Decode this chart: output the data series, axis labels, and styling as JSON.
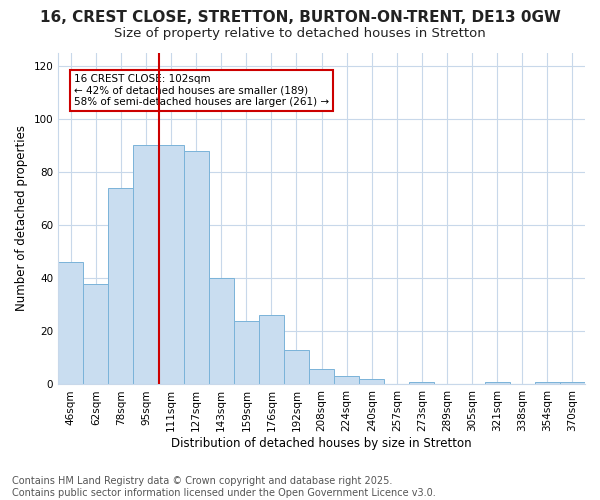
{
  "title": "16, CREST CLOSE, STRETTON, BURTON-ON-TRENT, DE13 0GW",
  "subtitle": "Size of property relative to detached houses in Stretton",
  "xlabel": "Distribution of detached houses by size in Stretton",
  "ylabel": "Number of detached properties",
  "categories": [
    "46sqm",
    "62sqm",
    "78sqm",
    "95sqm",
    "111sqm",
    "127sqm",
    "143sqm",
    "159sqm",
    "176sqm",
    "192sqm",
    "208sqm",
    "224sqm",
    "240sqm",
    "257sqm",
    "273sqm",
    "289sqm",
    "305sqm",
    "321sqm",
    "338sqm",
    "354sqm",
    "370sqm"
  ],
  "values": [
    46,
    38,
    74,
    90,
    90,
    88,
    40,
    24,
    26,
    13,
    6,
    3,
    2,
    0,
    1,
    0,
    0,
    1,
    0,
    1,
    1
  ],
  "bar_color": "#c9ddf0",
  "bar_edge_color": "#7ab3d9",
  "vline_color": "#cc0000",
  "annotation_text": "16 CREST CLOSE: 102sqm\n← 42% of detached houses are smaller (189)\n58% of semi-detached houses are larger (261) →",
  "annotation_box_color": "#ffffff",
  "annotation_box_edge": "#cc0000",
  "ylim": [
    0,
    125
  ],
  "yticks": [
    0,
    20,
    40,
    60,
    80,
    100,
    120
  ],
  "footer": "Contains HM Land Registry data © Crown copyright and database right 2025.\nContains public sector information licensed under the Open Government Licence v3.0.",
  "bg_color": "#ffffff",
  "grid_color": "#c8d8ea",
  "title_fontsize": 11,
  "subtitle_fontsize": 9.5,
  "tick_fontsize": 7.5,
  "ylabel_fontsize": 8.5,
  "xlabel_fontsize": 8.5,
  "footer_fontsize": 7
}
